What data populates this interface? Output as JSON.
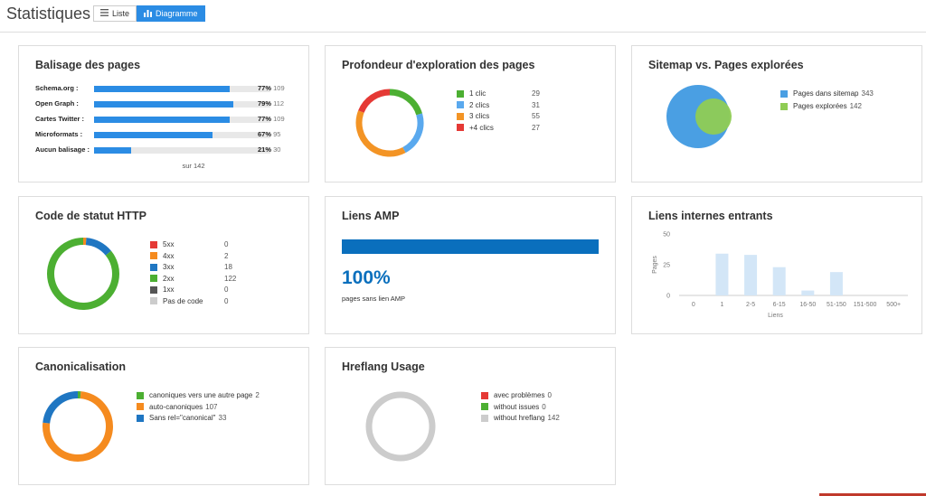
{
  "header": {
    "title": "Statistiques",
    "list_label": "Liste",
    "chart_label": "Diagramme"
  },
  "markup": {
    "title": "Balisage des pages",
    "rows": [
      {
        "label": "Schema.org :",
        "pct": "77%",
        "count": "109",
        "fraction": 0.77
      },
      {
        "label": "Open Graph :",
        "pct": "79%",
        "count": "112",
        "fraction": 0.79
      },
      {
        "label": "Cartes Twitter :",
        "pct": "77%",
        "count": "109",
        "fraction": 0.77
      },
      {
        "label": "Microformats :",
        "pct": "67%",
        "count": "95",
        "fraction": 0.67
      },
      {
        "label": "Aucun balisage :",
        "pct": "21%",
        "count": "30",
        "fraction": 0.21
      }
    ],
    "footer": "sur 142"
  },
  "depth": {
    "title": "Profondeur d'exploration des pages",
    "items": [
      {
        "label": "1 clic",
        "value": "29",
        "color": "#4caf32"
      },
      {
        "label": "2 clics",
        "value": "31",
        "color": "#5aa9ee"
      },
      {
        "label": "3 clics",
        "value": "55",
        "color": "#f39425"
      },
      {
        "label": "+4 clics",
        "value": "27",
        "color": "#e53935"
      }
    ]
  },
  "sitemap": {
    "title": "Sitemap vs. Pages explorées",
    "items": [
      {
        "label": "Pages dans sitemap",
        "value": "343",
        "color": "#4a9fe3"
      },
      {
        "label": "Pages explorées",
        "value": "142",
        "color": "#8fcc54"
      }
    ]
  },
  "http": {
    "title": "Code de statut HTTP",
    "items": [
      {
        "label": "5xx",
        "value": "0",
        "color": "#e53935"
      },
      {
        "label": "4xx",
        "value": "2",
        "color": "#f58b1f"
      },
      {
        "label": "3xx",
        "value": "18",
        "color": "#1f76c2"
      },
      {
        "label": "2xx",
        "value": "122",
        "color": "#4caf32"
      },
      {
        "label": "1xx",
        "value": "0",
        "color": "#555555"
      },
      {
        "label": "Pas de code",
        "value": "0",
        "color": "#cccccc"
      }
    ]
  },
  "amp": {
    "title": "Liens AMP",
    "percent": "100%",
    "caption": "pages sans lien AMP",
    "fraction": 1.0,
    "color": "#0a6fbd"
  },
  "internal_links": {
    "title": "Liens internes entrants",
    "chart_data": {
      "type": "bar",
      "categories": [
        "0",
        "1",
        "2-5",
        "6-15",
        "16-50",
        "51-150",
        "151-500",
        "500+"
      ],
      "values": [
        0,
        34,
        33,
        23,
        4,
        19,
        0,
        0
      ],
      "xlabel": "Liens",
      "ylabel": "Pages",
      "ylim": [
        0,
        50
      ],
      "yticks": [
        "0",
        "25",
        "50"
      ],
      "color": "#d3e6f7"
    }
  },
  "canonical": {
    "title": "Canonicalisation",
    "items": [
      {
        "label": "canoniques vers une autre page",
        "value": "2",
        "color": "#4caf32"
      },
      {
        "label": "auto-canoniques",
        "value": "107",
        "color": "#f58b1f"
      },
      {
        "label": "Sans rel=\"canonical\"",
        "value": "33",
        "color": "#1f76c2"
      }
    ]
  },
  "hreflang": {
    "title": "Hreflang Usage",
    "items": [
      {
        "label": "avec problèmes",
        "value": "0",
        "color": "#e53935"
      },
      {
        "label": "without issues",
        "value": "0",
        "color": "#4caf32"
      },
      {
        "label": "without hreflang",
        "value": "142",
        "color": "#cccccc"
      }
    ]
  }
}
